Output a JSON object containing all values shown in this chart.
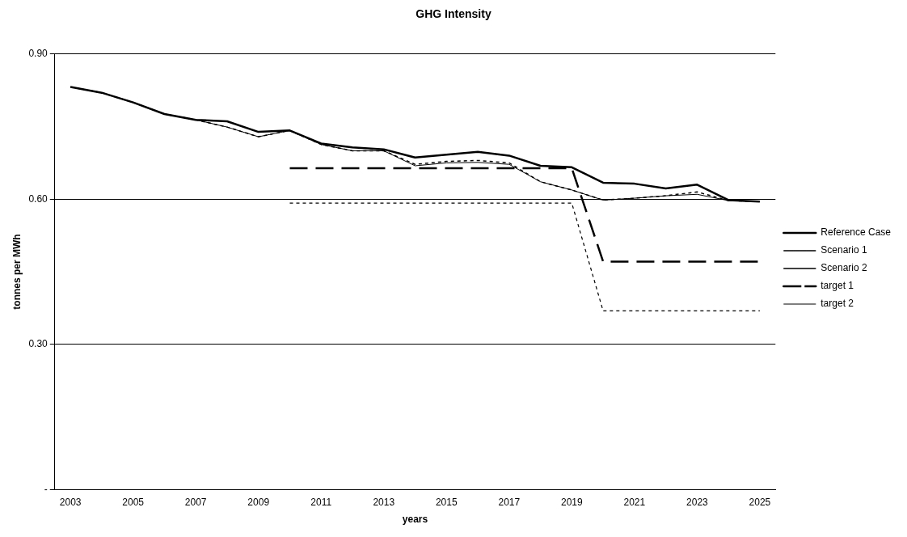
{
  "chart_data": {
    "type": "line",
    "title": "GHG Intensity",
    "xlabel": "years",
    "ylabel": "tonnes per MWh",
    "categories": [
      "2003",
      null,
      "2005",
      null,
      "2007",
      null,
      "2009",
      null,
      "2011",
      null,
      "2013",
      null,
      "2015",
      null,
      "2017",
      null,
      "2019",
      null,
      "2021",
      null,
      "2023",
      null,
      "2025"
    ],
    "ylim": [
      0,
      0.9
    ],
    "yticks": [
      {
        "value": 0,
        "label": "-"
      },
      {
        "value": 0.3,
        "label": "0.30"
      },
      {
        "value": 0.6,
        "label": "0.60"
      },
      {
        "value": 0.9,
        "label": "0.90"
      }
    ],
    "grid": "y",
    "legend": "right",
    "series": [
      {
        "name": "Reference Case",
        "color": "#000000",
        "line_style": "solid",
        "values": [
          0.832,
          0.82,
          0.8,
          0.776,
          0.764,
          0.761,
          0.739,
          0.742,
          0.715,
          0.707,
          0.703,
          0.686,
          0.692,
          0.698,
          0.69,
          0.669,
          0.666,
          0.634,
          0.632,
          0.622,
          0.63,
          0.598,
          0.595
        ]
      },
      {
        "name": "Scenario 1",
        "color": "#000000",
        "line_style": "dotted",
        "values": [
          0.832,
          0.82,
          0.8,
          0.776,
          0.764,
          0.749,
          0.729,
          0.742,
          0.713,
          0.7,
          0.7,
          0.672,
          0.678,
          0.68,
          0.675,
          0.636,
          0.619,
          0.598,
          0.602,
          0.607,
          0.615,
          0.597,
          0.595
        ]
      },
      {
        "name": "Scenario 2",
        "color": "#000000",
        "line_style": "solid",
        "values": [
          0.832,
          0.82,
          0.8,
          0.776,
          0.764,
          0.749,
          0.729,
          0.742,
          0.713,
          0.7,
          0.7,
          0.669,
          0.675,
          0.676,
          0.672,
          0.636,
          0.619,
          0.598,
          0.602,
          0.607,
          0.61,
          0.597,
          0.595
        ]
      },
      {
        "name": "target 1",
        "color": "#000000",
        "line_style": "dashed",
        "values": [
          null,
          null,
          null,
          null,
          null,
          null,
          null,
          0.664,
          0.664,
          0.664,
          0.664,
          0.664,
          0.664,
          0.664,
          0.664,
          0.664,
          0.664,
          0.471,
          0.471,
          0.471,
          0.471,
          0.471,
          0.471
        ]
      },
      {
        "name": "target 2",
        "color": "#000000",
        "line_style": "dotted",
        "values": [
          null,
          null,
          null,
          null,
          null,
          null,
          null,
          0.592,
          0.592,
          0.592,
          0.592,
          0.592,
          0.592,
          0.592,
          0.592,
          0.592,
          0.592,
          0.369,
          0.369,
          0.369,
          0.369,
          0.369,
          0.369
        ]
      }
    ]
  }
}
